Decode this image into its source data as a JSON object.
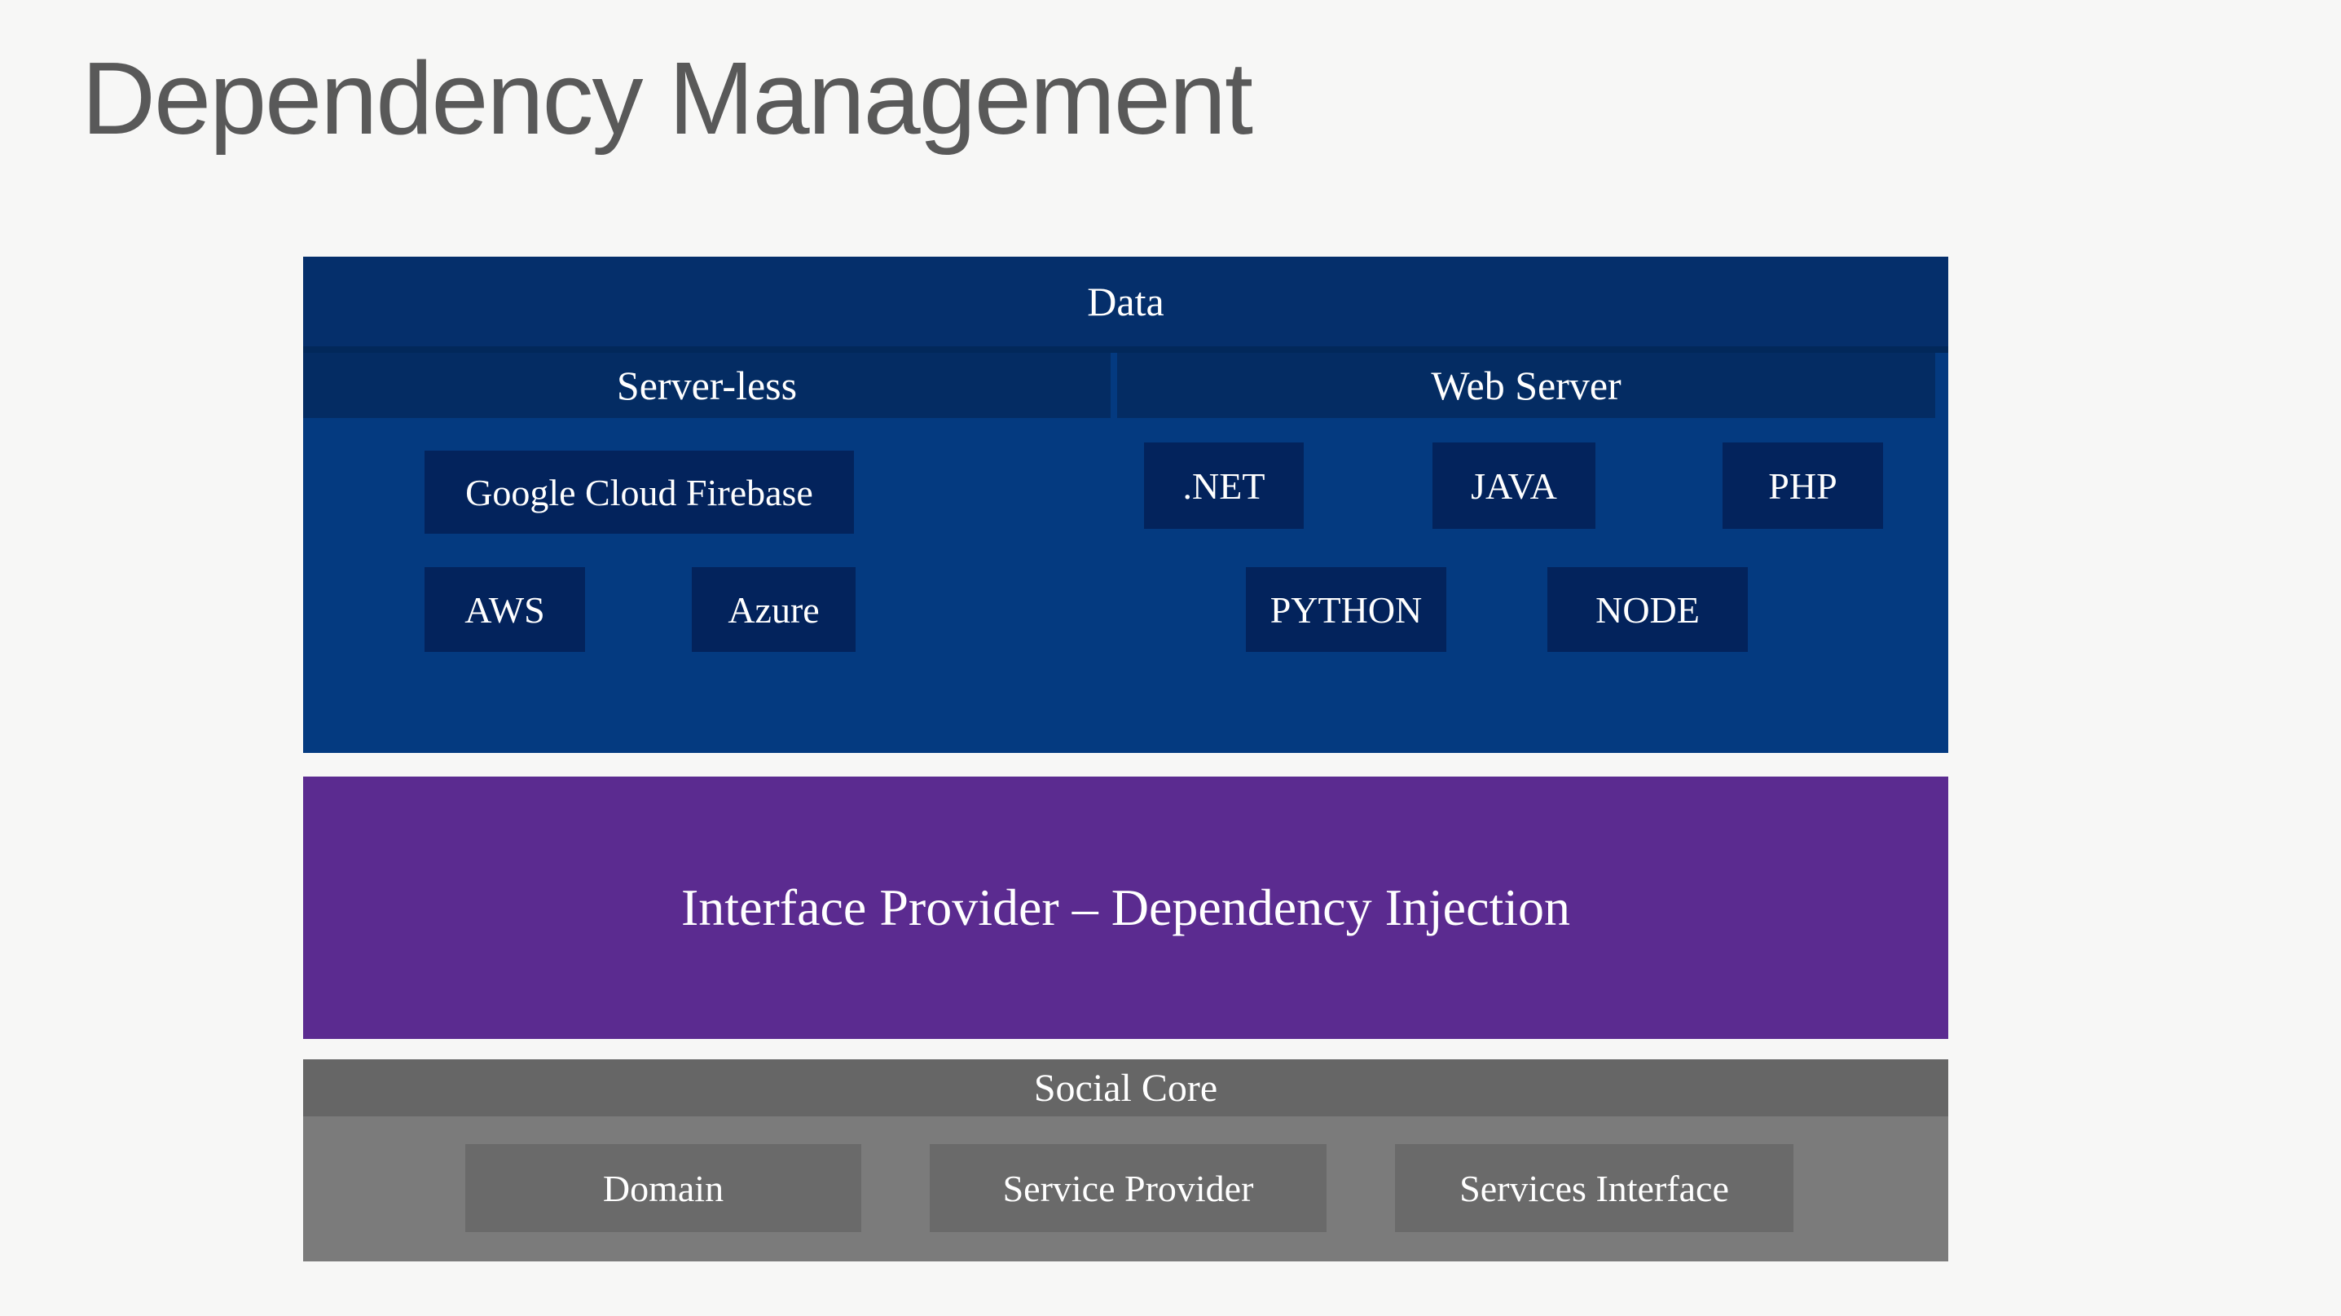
{
  "slide_title": "Dependency Management",
  "colors": {
    "background": "#f7f7f6",
    "title_text": "#595959",
    "data_body": "#043a80",
    "data_title_band": "#052f6b",
    "data_subheader": "#042c63",
    "data_item_box": "#03235c",
    "interface_band": "#5b2b90",
    "social_header": "#666666",
    "social_body": "#7b7b7b",
    "social_item_box": "#6a6a6a",
    "label_text": "#ffffff"
  },
  "data_layer": {
    "title": "Data",
    "server_less": {
      "label": "Server-less",
      "items": {
        "firebase": "Google Cloud Firebase",
        "aws": "AWS",
        "azure": "Azure"
      }
    },
    "web_server": {
      "label": "Web Server",
      "items": {
        "dotnet": ".NET",
        "java": "JAVA",
        "php": "PHP",
        "python": "PYTHON",
        "node": "NODE"
      }
    }
  },
  "interface_layer": {
    "label": "Interface Provider – Dependency Injection"
  },
  "social_layer": {
    "title": "Social Core",
    "items": {
      "domain": "Domain",
      "service_provider": "Service Provider",
      "services_interface": "Services Interface"
    }
  }
}
